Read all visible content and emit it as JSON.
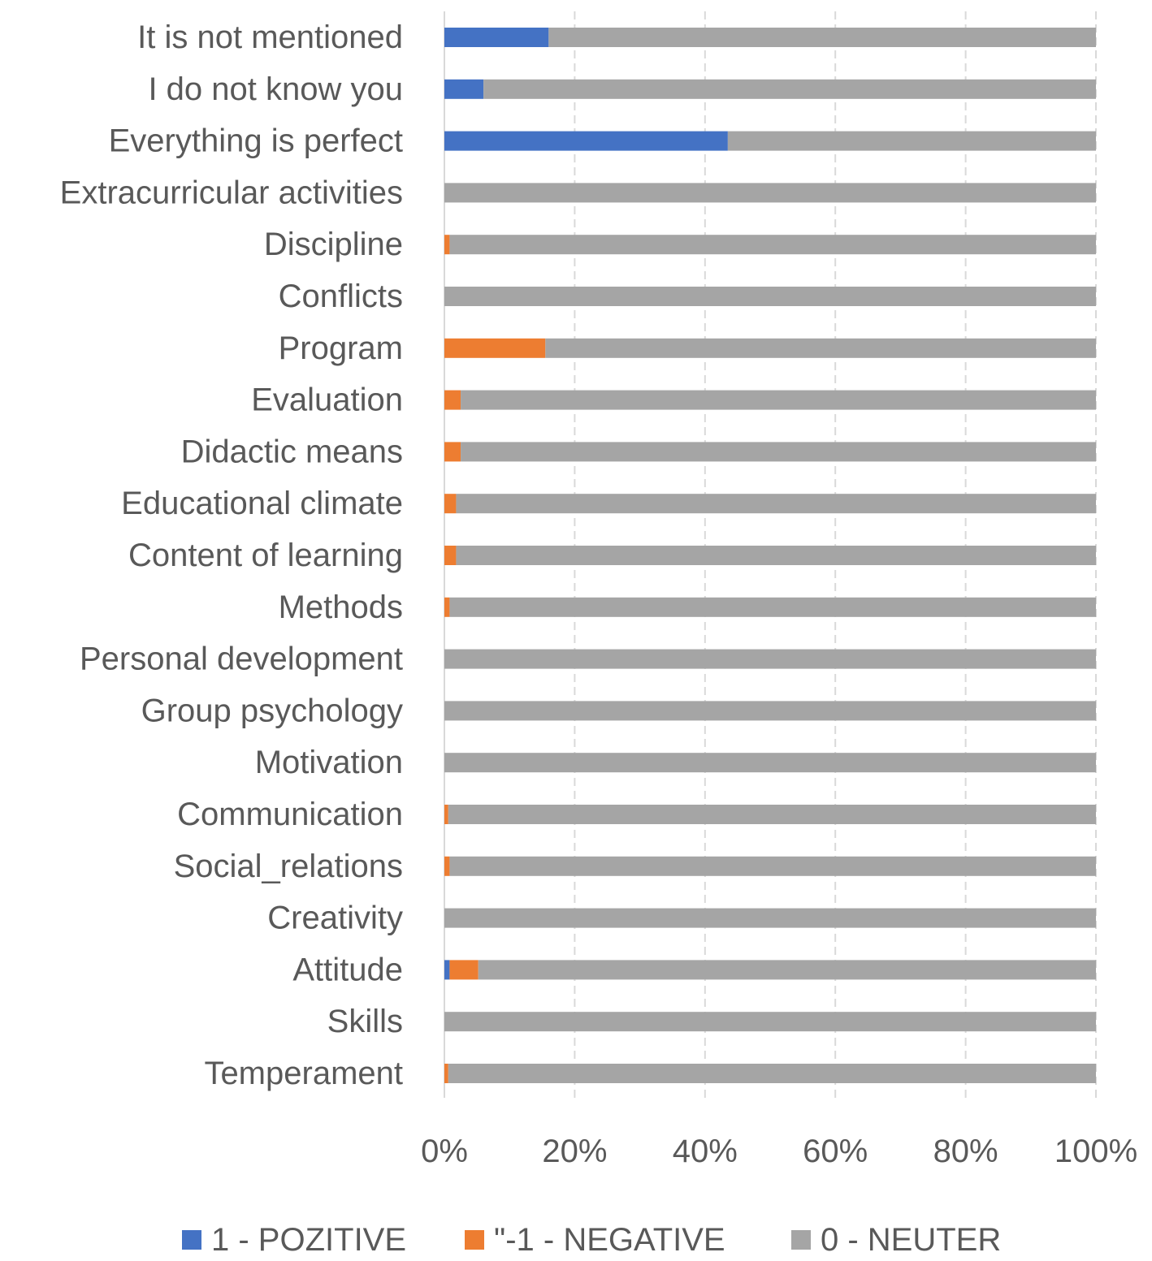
{
  "chart_data": {
    "type": "bar",
    "orientation": "horizontal",
    "stacked": "percent",
    "title": "",
    "xlabel": "",
    "ylabel": "",
    "xlim": [
      0,
      100
    ],
    "grid": "vertical dashed",
    "legend_position": "bottom",
    "categories": [
      "It is not mentioned",
      "I do not know you",
      "Everything is perfect",
      "Extracurricular activities",
      "Discipline",
      "Conflicts",
      "Program",
      "Evaluation",
      "Didactic means",
      "Educational climate",
      "Content of learning",
      "Methods",
      "Personal development",
      "Group psychology",
      "Motivation",
      "Communication",
      "Social_relations",
      "Creativity",
      "Attitude",
      "Skills",
      "Temperament"
    ],
    "x_ticks": [
      "0%",
      "20%",
      "40%",
      "60%",
      "80%",
      "100%"
    ],
    "series": [
      {
        "name": "1 - POZITIVE",
        "color": "#4472C4",
        "values": [
          16,
          6,
          43.5,
          0,
          0,
          0,
          0,
          0,
          0,
          0,
          0,
          0,
          0,
          0,
          0,
          0,
          0,
          0,
          0.8,
          0,
          0
        ]
      },
      {
        "name": "\"-1 - NEGATIVE",
        "color": "#ED7D31",
        "values": [
          0,
          0,
          0,
          0,
          0.8,
          0,
          15.5,
          2.5,
          2.5,
          1.8,
          1.8,
          0.8,
          0,
          0,
          0,
          0.6,
          0.8,
          0,
          4.4,
          0,
          0.6
        ]
      },
      {
        "name": "0 - NEUTER",
        "color": "#A5A5A5",
        "values": [
          84,
          94,
          56.5,
          100,
          99.2,
          100,
          84.5,
          97.5,
          97.5,
          98.2,
          98.2,
          99.2,
          100,
          100,
          100,
          99.4,
          99.2,
          100,
          94.8,
          100,
          99.4
        ]
      }
    ]
  }
}
